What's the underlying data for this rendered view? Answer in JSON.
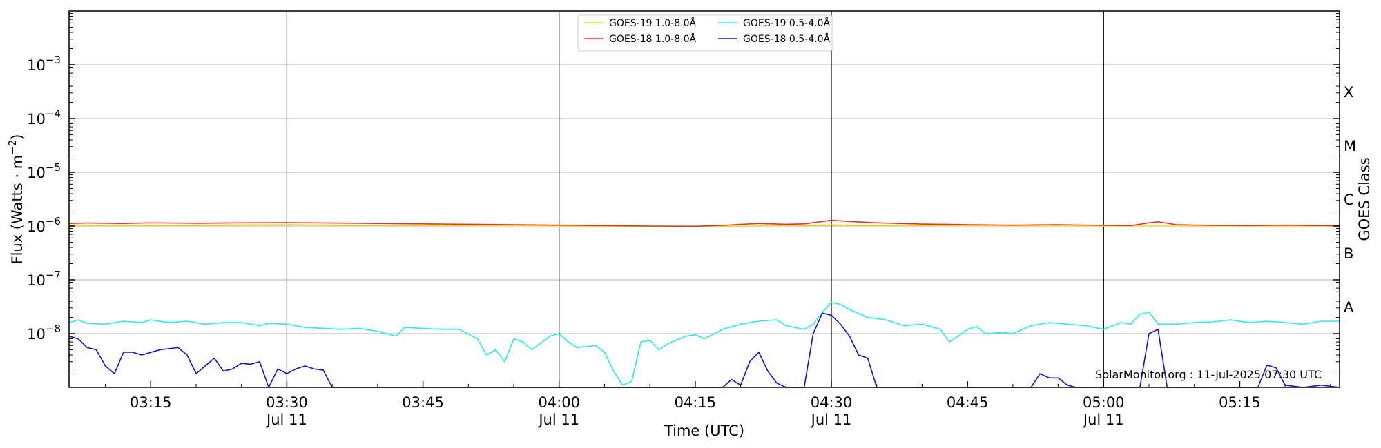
{
  "chart_data": {
    "type": "line",
    "xlabel": "Time (UTC)",
    "ylabel": "Flux (Watts · m",
    "ylabel_sup": "−2",
    "ylabel_close": ")",
    "right_axis_label": "GOES Class",
    "y_scale": "log",
    "ylim": [
      1e-09,
      0.01
    ],
    "xlim": [
      "03:06",
      "05:26"
    ],
    "grid": "horizontal at decades",
    "legend_position": "top-center",
    "y_ticks": [
      {
        "value": 1e-08,
        "base": "10",
        "exp": "−8"
      },
      {
        "value": 1e-07,
        "base": "10",
        "exp": "−7"
      },
      {
        "value": 1e-06,
        "base": "10",
        "exp": "−6"
      },
      {
        "value": 1e-05,
        "base": "10",
        "exp": "−5"
      },
      {
        "value": 0.0001,
        "base": "10",
        "exp": "−4"
      },
      {
        "value": 0.001,
        "base": "10",
        "exp": "−3"
      }
    ],
    "x_ticks": [
      {
        "time": "03:15",
        "label": "03:15",
        "sublabel": "",
        "day_line": false
      },
      {
        "time": "03:30",
        "label": "03:30",
        "sublabel": "Jul 11",
        "day_line": true
      },
      {
        "time": "03:45",
        "label": "03:45",
        "sublabel": "",
        "day_line": false
      },
      {
        "time": "04:00",
        "label": "04:00",
        "sublabel": "Jul 11",
        "day_line": true
      },
      {
        "time": "04:15",
        "label": "04:15",
        "sublabel": "",
        "day_line": false
      },
      {
        "time": "04:30",
        "label": "04:30",
        "sublabel": "Jul 11",
        "day_line": true
      },
      {
        "time": "04:45",
        "label": "04:45",
        "sublabel": "",
        "day_line": false
      },
      {
        "time": "05:00",
        "label": "05:00",
        "sublabel": "Jul 11",
        "day_line": true
      },
      {
        "time": "05:15",
        "label": "05:15",
        "sublabel": "",
        "day_line": false
      }
    ],
    "goes_classes": [
      {
        "label": "A",
        "value": 3.16e-08
      },
      {
        "label": "B",
        "value": 3.16e-07
      },
      {
        "label": "C",
        "value": 3.16e-06
      },
      {
        "label": "M",
        "value": 3.16e-05
      },
      {
        "label": "X",
        "value": 0.000316
      }
    ],
    "watermark": "SolarMonitor.org : 11-Jul-2025 07:30 UTC",
    "series": [
      {
        "name": "GOES-19 1.0-8.0Å",
        "color": "#ffd700",
        "points": [
          [
            "03:06",
            1.02e-06
          ],
          [
            "03:15",
            1.03e-06
          ],
          [
            "03:25",
            1.05e-06
          ],
          [
            "03:30",
            1.06e-06
          ],
          [
            "03:40",
            1.03e-06
          ],
          [
            "03:50",
            1.02e-06
          ],
          [
            "04:00",
            1e-06
          ],
          [
            "04:10",
            9.8e-07
          ],
          [
            "04:20",
            9.9e-07
          ],
          [
            "04:30",
            1.05e-06
          ],
          [
            "04:40",
            1.02e-06
          ],
          [
            "04:50",
            1e-06
          ],
          [
            "05:00",
            1e-06
          ],
          [
            "05:10",
            1e-06
          ],
          [
            "05:20",
            1e-06
          ],
          [
            "05:26",
            1e-06
          ]
        ]
      },
      {
        "name": "GOES-18 1.0-8.0Å",
        "color": "#e8302a",
        "points": [
          [
            "03:06",
            1.12e-06
          ],
          [
            "03:08",
            1.14e-06
          ],
          [
            "03:12",
            1.12e-06
          ],
          [
            "03:15",
            1.15e-06
          ],
          [
            "03:20",
            1.13e-06
          ],
          [
            "03:25",
            1.15e-06
          ],
          [
            "03:30",
            1.16e-06
          ],
          [
            "03:35",
            1.14e-06
          ],
          [
            "03:40",
            1.12e-06
          ],
          [
            "03:45",
            1.1e-06
          ],
          [
            "03:50",
            1.08e-06
          ],
          [
            "03:55",
            1.06e-06
          ],
          [
            "04:00",
            1.04e-06
          ],
          [
            "04:05",
            1.02e-06
          ],
          [
            "04:10",
            1e-06
          ],
          [
            "04:15",
            9.9e-07
          ],
          [
            "04:18",
            1.03e-06
          ],
          [
            "04:22",
            1.12e-06
          ],
          [
            "04:25",
            1.08e-06
          ],
          [
            "04:27",
            1.1e-06
          ],
          [
            "04:30",
            1.28e-06
          ],
          [
            "04:32",
            1.22e-06
          ],
          [
            "04:35",
            1.15e-06
          ],
          [
            "04:40",
            1.09e-06
          ],
          [
            "04:45",
            1.06e-06
          ],
          [
            "04:50",
            1.04e-06
          ],
          [
            "04:55",
            1.06e-06
          ],
          [
            "05:00",
            1.03e-06
          ],
          [
            "05:03",
            1.02e-06
          ],
          [
            "05:05",
            1.15e-06
          ],
          [
            "05:06",
            1.2e-06
          ],
          [
            "05:08",
            1.06e-06
          ],
          [
            "05:12",
            1.03e-06
          ],
          [
            "05:16",
            1.02e-06
          ],
          [
            "05:20",
            1.04e-06
          ],
          [
            "05:26",
            1.01e-06
          ]
        ]
      },
      {
        "name": "GOES-19 0.5-4.0Å",
        "color": "#22f0ee",
        "points": [
          [
            "03:06",
            1.6e-08
          ],
          [
            "03:07",
            1.8e-08
          ],
          [
            "03:08",
            1.55e-08
          ],
          [
            "03:10",
            1.5e-08
          ],
          [
            "03:12",
            1.7e-08
          ],
          [
            "03:14",
            1.6e-08
          ],
          [
            "03:15",
            1.8e-08
          ],
          [
            "03:17",
            1.6e-08
          ],
          [
            "03:19",
            1.7e-08
          ],
          [
            "03:21",
            1.5e-08
          ],
          [
            "03:23",
            1.6e-08
          ],
          [
            "03:25",
            1.6e-08
          ],
          [
            "03:27",
            1.4e-08
          ],
          [
            "03:28",
            1.55e-08
          ],
          [
            "03:30",
            1.5e-08
          ],
          [
            "03:32",
            1.3e-08
          ],
          [
            "03:34",
            1.25e-08
          ],
          [
            "03:36",
            1.2e-08
          ],
          [
            "03:38",
            1.25e-08
          ],
          [
            "03:40",
            1.1e-08
          ],
          [
            "03:42",
            9e-09
          ],
          [
            "03:43",
            1.3e-08
          ],
          [
            "03:45",
            1.25e-08
          ],
          [
            "03:47",
            1.2e-08
          ],
          [
            "03:49",
            1.2e-08
          ],
          [
            "03:51",
            8e-09
          ],
          [
            "03:52",
            4e-09
          ],
          [
            "03:53",
            5e-09
          ],
          [
            "03:54",
            3e-09
          ],
          [
            "03:55",
            8e-09
          ],
          [
            "03:56",
            7e-09
          ],
          [
            "03:57",
            5e-09
          ],
          [
            "03:59",
            9e-09
          ],
          [
            "04:00",
            1e-08
          ],
          [
            "04:01",
            7e-09
          ],
          [
            "04:02",
            5.5e-09
          ],
          [
            "04:04",
            6e-09
          ],
          [
            "04:05",
            4.5e-09
          ],
          [
            "04:06",
            2e-09
          ],
          [
            "04:07",
            1.1e-09
          ],
          [
            "04:08",
            1.3e-09
          ],
          [
            "04:09",
            7e-09
          ],
          [
            "04:10",
            7.5e-09
          ],
          [
            "04:11",
            5e-09
          ],
          [
            "04:12",
            6.5e-09
          ],
          [
            "04:14",
            9e-09
          ],
          [
            "04:15",
            9.5e-09
          ],
          [
            "04:16",
            8e-09
          ],
          [
            "04:18",
            1.2e-08
          ],
          [
            "04:20",
            1.5e-08
          ],
          [
            "04:22",
            1.7e-08
          ],
          [
            "04:24",
            1.8e-08
          ],
          [
            "04:25",
            1.4e-08
          ],
          [
            "04:27",
            1.2e-08
          ],
          [
            "04:28",
            1.5e-08
          ],
          [
            "04:29",
            2.5e-08
          ],
          [
            "04:30",
            3.8e-08
          ],
          [
            "04:31",
            3.5e-08
          ],
          [
            "04:32",
            2.8e-08
          ],
          [
            "04:34",
            2e-08
          ],
          [
            "04:36",
            1.8e-08
          ],
          [
            "04:38",
            1.4e-08
          ],
          [
            "04:40",
            1.5e-08
          ],
          [
            "04:42",
            1.2e-08
          ],
          [
            "04:43",
            7e-09
          ],
          [
            "04:44",
            9e-09
          ],
          [
            "04:45",
            1.2e-08
          ],
          [
            "04:46",
            1.35e-08
          ],
          [
            "04:47",
            1e-08
          ],
          [
            "04:49",
            1.05e-08
          ],
          [
            "04:50",
            1e-08
          ],
          [
            "04:52",
            1.4e-08
          ],
          [
            "04:54",
            1.6e-08
          ],
          [
            "04:56",
            1.5e-08
          ],
          [
            "04:58",
            1.4e-08
          ],
          [
            "05:00",
            1.2e-08
          ],
          [
            "05:01",
            1.4e-08
          ],
          [
            "05:02",
            1.6e-08
          ],
          [
            "05:03",
            1.5e-08
          ],
          [
            "05:04",
            2.3e-08
          ],
          [
            "05:05",
            2.5e-08
          ],
          [
            "05:06",
            1.5e-08
          ],
          [
            "05:08",
            1.5e-08
          ],
          [
            "05:10",
            1.6e-08
          ],
          [
            "05:12",
            1.65e-08
          ],
          [
            "05:14",
            1.8e-08
          ],
          [
            "05:16",
            1.6e-08
          ],
          [
            "05:18",
            1.7e-08
          ],
          [
            "05:20",
            1.6e-08
          ],
          [
            "05:22",
            1.5e-08
          ],
          [
            "05:24",
            1.7e-08
          ],
          [
            "05:26",
            1.7e-08
          ]
        ]
      },
      {
        "name": "GOES-18 0.5-4.0Å",
        "color": "#1010e0",
        "points": [
          [
            "03:06",
            9e-09
          ],
          [
            "03:07",
            8e-09
          ],
          [
            "03:08",
            5.5e-09
          ],
          [
            "03:09",
            5e-09
          ],
          [
            "03:10",
            2.5e-09
          ],
          [
            "03:11",
            1.8e-09
          ],
          [
            "03:12",
            4.5e-09
          ],
          [
            "03:13",
            4.5e-09
          ],
          [
            "03:14",
            4e-09
          ],
          [
            "03:16",
            5e-09
          ],
          [
            "03:18",
            5.5e-09
          ],
          [
            "03:19",
            4e-09
          ],
          [
            "03:20",
            1.8e-09
          ],
          [
            "03:21",
            2.5e-09
          ],
          [
            "03:22",
            3.5e-09
          ],
          [
            "03:23",
            2e-09
          ],
          [
            "03:24",
            2.2e-09
          ],
          [
            "03:25",
            2.8e-09
          ],
          [
            "03:26",
            2.7e-09
          ],
          [
            "03:27",
            3e-09
          ],
          [
            "03:28",
            1e-09
          ],
          [
            "03:29",
            2.2e-09
          ],
          [
            "03:30",
            1.8e-09
          ],
          [
            "03:31",
            2.2e-09
          ],
          [
            "03:32",
            2.5e-09
          ],
          [
            "03:33",
            2.2e-09
          ],
          [
            "03:34",
            2.1e-09
          ],
          [
            "03:35",
            1e-09
          ],
          [
            "04:18",
            1e-09
          ],
          [
            "04:19",
            1.4e-09
          ],
          [
            "04:20",
            1.1e-09
          ],
          [
            "04:21",
            3e-09
          ],
          [
            "04:22",
            4.5e-09
          ],
          [
            "04:23",
            2e-09
          ],
          [
            "04:24",
            1.2e-09
          ],
          [
            "04:25",
            1e-09
          ],
          [
            "04:27",
            1e-09
          ],
          [
            "04:28",
            1e-08
          ],
          [
            "04:29",
            2.4e-08
          ],
          [
            "04:30",
            2.2e-08
          ],
          [
            "04:31",
            1.5e-08
          ],
          [
            "04:32",
            9e-09
          ],
          [
            "04:33",
            4e-09
          ],
          [
            "04:34",
            3.5e-09
          ],
          [
            "04:35",
            1e-09
          ],
          [
            "04:52",
            1e-09
          ],
          [
            "04:53",
            1.8e-09
          ],
          [
            "04:54",
            1.5e-09
          ],
          [
            "04:55",
            1.5e-09
          ],
          [
            "04:56",
            1.1e-09
          ],
          [
            "04:57",
            1e-09
          ],
          [
            "05:04",
            1e-09
          ],
          [
            "05:05",
            1e-08
          ],
          [
            "05:06",
            1.2e-08
          ],
          [
            "05:07",
            1e-09
          ],
          [
            "05:17",
            1e-09
          ],
          [
            "05:18",
            2.6e-09
          ],
          [
            "05:19",
            2.3e-09
          ],
          [
            "05:20",
            1.1e-09
          ],
          [
            "05:22",
            1e-09
          ],
          [
            "05:24",
            1.1e-09
          ],
          [
            "05:26",
            1e-09
          ]
        ]
      }
    ]
  }
}
